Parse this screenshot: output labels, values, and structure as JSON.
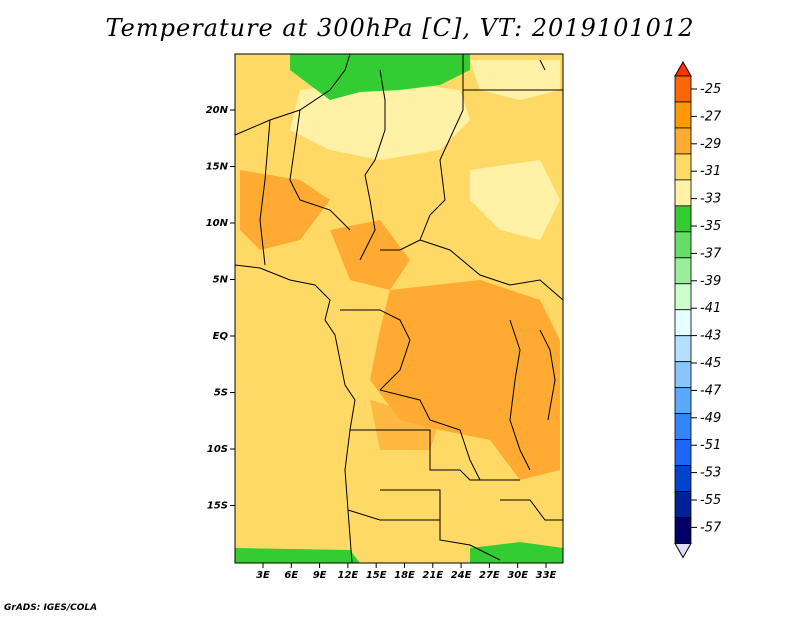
{
  "title": "Temperature at 300hPa [C], VT: 2019101012",
  "footer": "GrADS: IGES/COLA",
  "map": {
    "lat_labels": [
      "20N",
      "15N",
      "10N",
      "5N",
      "EQ",
      "5S",
      "10S",
      "15S"
    ],
    "lon_labels": [
      "3E",
      "6E",
      "9E",
      "12E",
      "15E",
      "18E",
      "21E",
      "24E",
      "27E",
      "30E",
      "33E"
    ]
  },
  "colorbar": {
    "labels": [
      "-25",
      "-27",
      "-29",
      "-31",
      "-33",
      "-35",
      "-37",
      "-39",
      "-41",
      "-43",
      "-45",
      "-47",
      "-49",
      "-51",
      "-53",
      "-55",
      "-57"
    ],
    "colors": [
      "#ff3300",
      "#ff6600",
      "#ff9900",
      "#ffaa33",
      "#ffd966",
      "#fff2a6",
      "#33cc33",
      "#66dd66",
      "#99ee99",
      "#ccffcc",
      "#e6ffff",
      "#b3e0ff",
      "#88c4ff",
      "#5aa8ff",
      "#3385ff",
      "#1a66ff",
      "#0044cc",
      "#002299",
      "#000066",
      "#ddddff"
    ]
  },
  "colors": {
    "land_base": "#ffd966",
    "warm": "#ffaa33",
    "cool": "#fff2a6",
    "green": "#33cc33"
  }
}
